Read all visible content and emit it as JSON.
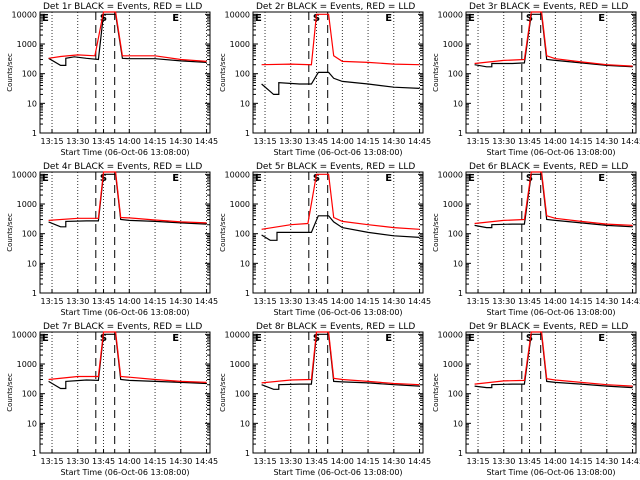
{
  "chart_data": {
    "type": "line",
    "yscale": "log",
    "ylim": [
      1,
      12000
    ],
    "xlim": [
      "13:08",
      "14:47"
    ],
    "y_ticks": [
      "1",
      "10",
      "100",
      "1000",
      "10000"
    ],
    "x_ticks": [
      "13:15",
      "13:30",
      "13:45",
      "14:00",
      "14:15",
      "14:30",
      "14:45"
    ],
    "ylabel": "Counts/sec",
    "xlabel": "Start Time (06-Oct-06 13:08:00)",
    "markers": {
      "S": "13:45",
      "E": "14:27"
    },
    "grid": "dotted vertical lines at 15 min ticks",
    "colors": {
      "events": "#000000",
      "lld": "#ff0000"
    },
    "panels": [
      {
        "title": "Det 1r BLACK = Events, RED = LLD",
        "events": [
          [
            13.13,
            330
          ],
          [
            13.2,
            190
          ],
          [
            13.23,
            190
          ],
          [
            13.23,
            330
          ],
          [
            13.28,
            370
          ],
          [
            13.35,
            330
          ],
          [
            13.42,
            300
          ],
          [
            13.45,
            10000
          ],
          [
            13.52,
            10000
          ],
          [
            13.56,
            330
          ],
          [
            14.0,
            320
          ],
          [
            14.15,
            320
          ],
          [
            14.3,
            270
          ],
          [
            14.45,
            240
          ]
        ],
        "lld": [
          [
            13.13,
            330
          ],
          [
            13.2,
            380
          ],
          [
            13.3,
            430
          ],
          [
            13.4,
            400
          ],
          [
            13.45,
            12000
          ],
          [
            13.52,
            12000
          ],
          [
            13.56,
            400
          ],
          [
            14.0,
            400
          ],
          [
            14.15,
            400
          ],
          [
            14.3,
            300
          ],
          [
            14.45,
            260
          ]
        ]
      },
      {
        "title": "Det 2r BLACK = Events, RED = LLD",
        "events": [
          [
            13.13,
            45
          ],
          [
            13.2,
            20
          ],
          [
            13.23,
            20
          ],
          [
            13.23,
            50
          ],
          [
            13.35,
            45
          ],
          [
            13.42,
            45
          ],
          [
            13.46,
            110
          ],
          [
            13.52,
            110
          ],
          [
            13.55,
            70
          ],
          [
            14.0,
            55
          ],
          [
            14.15,
            45
          ],
          [
            14.3,
            35
          ],
          [
            14.45,
            32
          ]
        ],
        "lld": [
          [
            13.13,
            200
          ],
          [
            13.3,
            210
          ],
          [
            13.42,
            200
          ],
          [
            13.45,
            10000
          ],
          [
            13.52,
            10000
          ],
          [
            13.55,
            400
          ],
          [
            14.0,
            260
          ],
          [
            14.15,
            240
          ],
          [
            14.3,
            210
          ],
          [
            14.45,
            200
          ]
        ]
      },
      {
        "title": "Det 3r BLACK = Events, RED = LLD",
        "events": [
          [
            13.13,
            200
          ],
          [
            13.2,
            170
          ],
          [
            13.23,
            170
          ],
          [
            13.23,
            220
          ],
          [
            13.35,
            220
          ],
          [
            13.42,
            230
          ],
          [
            13.46,
            10000
          ],
          [
            13.52,
            10000
          ],
          [
            13.55,
            300
          ],
          [
            14.0,
            280
          ],
          [
            14.15,
            230
          ],
          [
            14.3,
            190
          ],
          [
            14.45,
            170
          ]
        ],
        "lld": [
          [
            13.13,
            220
          ],
          [
            13.3,
            280
          ],
          [
            13.42,
            300
          ],
          [
            13.46,
            12000
          ],
          [
            13.52,
            12000
          ],
          [
            13.55,
            400
          ],
          [
            14.0,
            320
          ],
          [
            14.15,
            250
          ],
          [
            14.3,
            200
          ],
          [
            14.45,
            180
          ]
        ]
      },
      {
        "title": "Det 4r BLACK = Events, RED = LLD",
        "events": [
          [
            13.13,
            250
          ],
          [
            13.2,
            170
          ],
          [
            13.23,
            170
          ],
          [
            13.23,
            260
          ],
          [
            13.35,
            270
          ],
          [
            13.42,
            270
          ],
          [
            13.45,
            10000
          ],
          [
            13.52,
            10000
          ],
          [
            13.55,
            300
          ],
          [
            14.0,
            280
          ],
          [
            14.15,
            260
          ],
          [
            14.3,
            230
          ],
          [
            14.45,
            210
          ]
        ],
        "lld": [
          [
            13.13,
            280
          ],
          [
            13.3,
            330
          ],
          [
            13.42,
            330
          ],
          [
            13.45,
            12000
          ],
          [
            13.52,
            12000
          ],
          [
            13.55,
            350
          ],
          [
            14.0,
            340
          ],
          [
            14.15,
            290
          ],
          [
            14.3,
            250
          ],
          [
            14.45,
            230
          ]
        ]
      },
      {
        "title": "Det 5r BLACK = Events, RED = LLD",
        "events": [
          [
            13.13,
            90
          ],
          [
            13.18,
            60
          ],
          [
            13.22,
            60
          ],
          [
            13.22,
            110
          ],
          [
            13.35,
            110
          ],
          [
            13.42,
            110
          ],
          [
            13.46,
            400
          ],
          [
            13.52,
            400
          ],
          [
            13.55,
            250
          ],
          [
            14.0,
            160
          ],
          [
            14.15,
            110
          ],
          [
            14.3,
            85
          ],
          [
            14.45,
            75
          ]
        ],
        "lld": [
          [
            13.13,
            140
          ],
          [
            13.3,
            200
          ],
          [
            13.4,
            220
          ],
          [
            13.45,
            10000
          ],
          [
            13.52,
            10000
          ],
          [
            13.55,
            350
          ],
          [
            14.0,
            260
          ],
          [
            14.15,
            200
          ],
          [
            14.3,
            160
          ],
          [
            14.45,
            140
          ]
        ]
      },
      {
        "title": "Det 6r BLACK = Events, RED = LLD",
        "events": [
          [
            13.13,
            190
          ],
          [
            13.2,
            160
          ],
          [
            13.23,
            160
          ],
          [
            13.23,
            200
          ],
          [
            13.35,
            210
          ],
          [
            13.42,
            210
          ],
          [
            13.46,
            10000
          ],
          [
            13.52,
            10000
          ],
          [
            13.55,
            300
          ],
          [
            14.0,
            280
          ],
          [
            14.15,
            230
          ],
          [
            14.3,
            190
          ],
          [
            14.45,
            170
          ]
        ],
        "lld": [
          [
            13.13,
            220
          ],
          [
            13.3,
            280
          ],
          [
            13.42,
            300
          ],
          [
            13.46,
            12000
          ],
          [
            13.52,
            12000
          ],
          [
            13.55,
            400
          ],
          [
            14.0,
            330
          ],
          [
            14.15,
            260
          ],
          [
            14.3,
            210
          ],
          [
            14.45,
            190
          ]
        ]
      },
      {
        "title": "Det 7r BLACK = Events, RED = LLD",
        "events": [
          [
            13.13,
            260
          ],
          [
            13.2,
            150
          ],
          [
            13.23,
            150
          ],
          [
            13.23,
            260
          ],
          [
            13.35,
            290
          ],
          [
            13.42,
            280
          ],
          [
            13.45,
            10000
          ],
          [
            13.52,
            10000
          ],
          [
            13.55,
            300
          ],
          [
            14.0,
            280
          ],
          [
            14.15,
            260
          ],
          [
            14.3,
            240
          ],
          [
            14.45,
            220
          ]
        ],
        "lld": [
          [
            13.13,
            300
          ],
          [
            13.3,
            380
          ],
          [
            13.42,
            380
          ],
          [
            13.45,
            12000
          ],
          [
            13.52,
            12000
          ],
          [
            13.55,
            380
          ],
          [
            14.0,
            360
          ],
          [
            14.15,
            300
          ],
          [
            14.3,
            260
          ],
          [
            14.45,
            240
          ]
        ]
      },
      {
        "title": "Det 8r BLACK = Events, RED = LLD",
        "events": [
          [
            13.13,
            200
          ],
          [
            13.2,
            140
          ],
          [
            13.23,
            140
          ],
          [
            13.23,
            200
          ],
          [
            13.35,
            210
          ],
          [
            13.42,
            210
          ],
          [
            13.45,
            10000
          ],
          [
            13.52,
            10000
          ],
          [
            13.55,
            260
          ],
          [
            14.0,
            250
          ],
          [
            14.15,
            230
          ],
          [
            14.3,
            200
          ],
          [
            14.45,
            180
          ]
        ],
        "lld": [
          [
            13.13,
            230
          ],
          [
            13.3,
            290
          ],
          [
            13.42,
            300
          ],
          [
            13.45,
            12000
          ],
          [
            13.52,
            12000
          ],
          [
            13.55,
            330
          ],
          [
            14.0,
            300
          ],
          [
            14.15,
            260
          ],
          [
            14.3,
            220
          ],
          [
            14.45,
            200
          ]
        ]
      },
      {
        "title": "Det 9r BLACK = Events, RED = LLD",
        "events": [
          [
            13.13,
            180
          ],
          [
            13.2,
            160
          ],
          [
            13.23,
            160
          ],
          [
            13.23,
            200
          ],
          [
            13.35,
            210
          ],
          [
            13.42,
            210
          ],
          [
            13.46,
            10000
          ],
          [
            13.52,
            10000
          ],
          [
            13.55,
            260
          ],
          [
            14.0,
            240
          ],
          [
            14.15,
            210
          ],
          [
            14.3,
            180
          ],
          [
            14.45,
            160
          ]
        ],
        "lld": [
          [
            13.13,
            210
          ],
          [
            13.3,
            270
          ],
          [
            13.42,
            280
          ],
          [
            13.46,
            12000
          ],
          [
            13.52,
            12000
          ],
          [
            13.55,
            320
          ],
          [
            14.0,
            290
          ],
          [
            14.15,
            240
          ],
          [
            14.3,
            200
          ],
          [
            14.45,
            180
          ]
        ]
      }
    ]
  }
}
